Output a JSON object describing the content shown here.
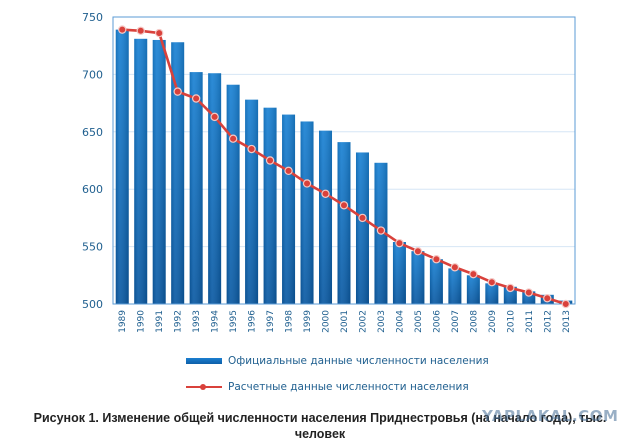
{
  "chart_data": {
    "type": "bar",
    "title": "",
    "caption": "Рисунок 1. Изменение общей численности населения Приднестровья (на начало года), тыс. человек",
    "xlabel": "",
    "ylabel": "",
    "ylim": [
      500,
      750
    ],
    "yticks": [
      500,
      550,
      600,
      650,
      700,
      750
    ],
    "grid": true,
    "legend_position": "bottom",
    "categories": [
      "1989",
      "1990",
      "1991",
      "1992",
      "1993",
      "1994",
      "1995",
      "1996",
      "1997",
      "1998",
      "1999",
      "2000",
      "2001",
      "2002",
      "2003",
      "2004",
      "2005",
      "2006",
      "2007",
      "2008",
      "2009",
      "2010",
      "2011",
      "2012",
      "2013"
    ],
    "series": [
      {
        "name": "Официальные данные численности населения",
        "type": "bar",
        "color": "#0f6cbd",
        "values": [
          739,
          731,
          730,
          728,
          702,
          701,
          691,
          678,
          671,
          665,
          659,
          651,
          641,
          632,
          623,
          554,
          546,
          539,
          531,
          525,
          518,
          515,
          511,
          508,
          503
        ]
      },
      {
        "name": "Расчетные данные численности населения",
        "type": "line",
        "color": "#d9413b",
        "values": [
          739,
          738,
          736,
          685,
          679,
          663,
          644,
          635,
          625,
          616,
          605,
          596,
          586,
          575,
          564,
          553,
          546,
          539,
          532,
          526,
          519,
          514,
          510,
          505,
          500
        ]
      }
    ]
  },
  "legend": {
    "bar_label": "Официальные данные численности населения",
    "line_label": "Расчетные данные численности населения"
  },
  "caption": {
    "line1": "Рисунок 1. Изменение общей численности населения Приднестровья (на начало года), тыс.",
    "line2": "человек"
  },
  "watermark": "YAPLAKAL.COM"
}
